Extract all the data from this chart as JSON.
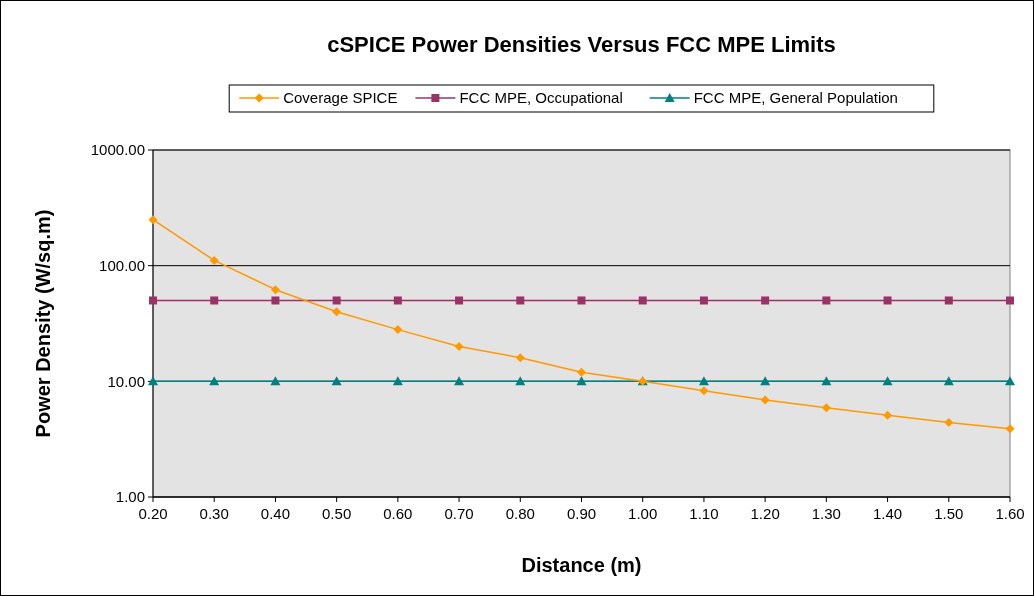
{
  "chart_data": {
    "type": "line",
    "title": "cSPICE Power Densities Versus FCC MPE Limits",
    "xlabel": "Distance (m)",
    "ylabel": "Power Density (W/sq.m)",
    "categories": [
      "0.20",
      "0.30",
      "0.40",
      "0.50",
      "0.60",
      "0.70",
      "0.80",
      "0.90",
      "1.00",
      "1.10",
      "1.20",
      "1.30",
      "1.40",
      "1.50",
      "1.60"
    ],
    "series": [
      {
        "name": "Coverage SPICE",
        "color": "#ff9900",
        "marker": "diamond",
        "values": [
          250,
          111,
          62,
          40,
          28,
          20,
          16,
          12,
          10,
          8.3,
          6.9,
          5.9,
          5.1,
          4.4,
          3.9
        ]
      },
      {
        "name": "FCC MPE, Occupational",
        "color": "#993366",
        "marker": "square",
        "values": [
          50,
          50,
          50,
          50,
          50,
          50,
          50,
          50,
          50,
          50,
          50,
          50,
          50,
          50,
          50
        ]
      },
      {
        "name": "FCC MPE, General Population",
        "color": "#008080",
        "marker": "triangle",
        "values": [
          10,
          10,
          10,
          10,
          10,
          10,
          10,
          10,
          10,
          10,
          10,
          10,
          10,
          10,
          10
        ]
      }
    ],
    "log": "y",
    "ylim": [
      1,
      1000
    ],
    "yticks": [
      {
        "value": 1,
        "label": "1.00"
      },
      {
        "value": 10,
        "label": "10.00"
      },
      {
        "value": 100,
        "label": "100.00"
      },
      {
        "value": 1000,
        "label": "1000.00"
      }
    ],
    "grid": "y",
    "legend": "top"
  }
}
